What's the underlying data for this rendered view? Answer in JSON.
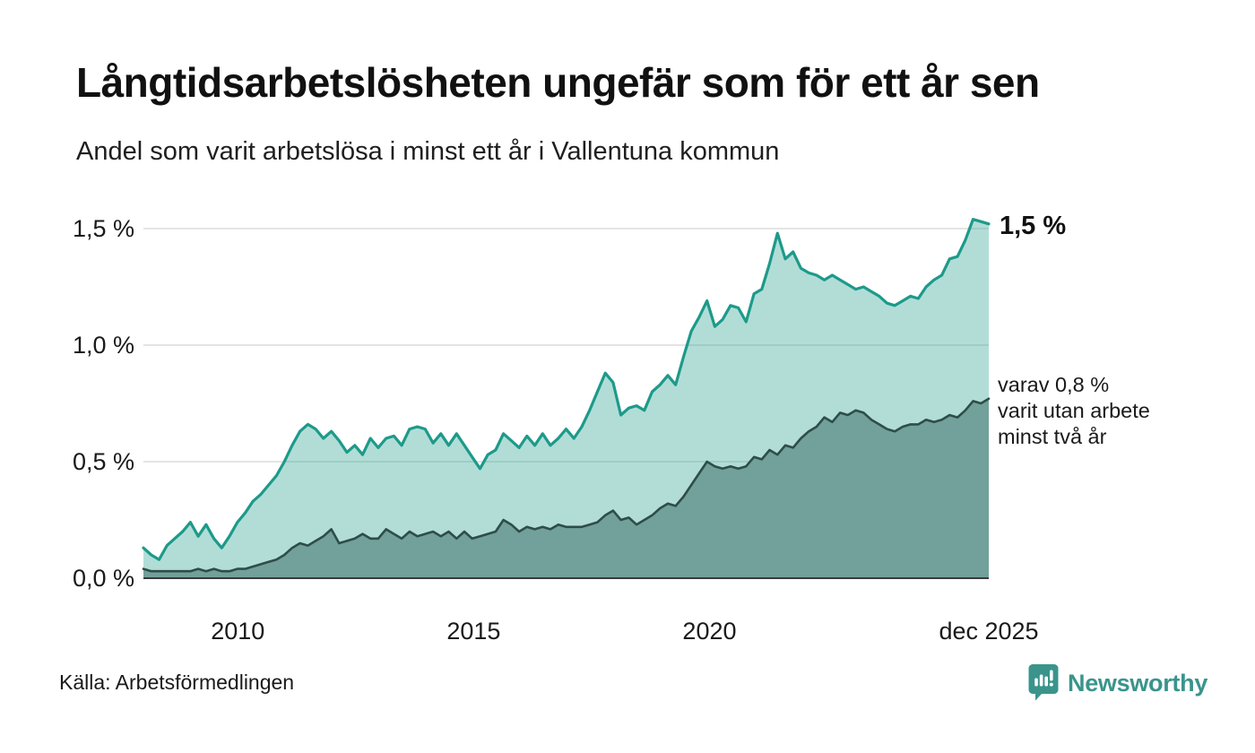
{
  "header": {
    "title": "Långtidsarbetslösheten ungefär som för ett år sen",
    "subtitle": "Andel som varit arbetslösa i minst ett år i Vallentuna kommun"
  },
  "chart_data": {
    "type": "area",
    "title": "Långtidsarbetslösheten ungefär som för ett år sen",
    "subtitle": "Andel som varit arbetslösa i minst ett år i Vallentuna kommun",
    "unit": "%",
    "x_range": [
      2008.0,
      2025.92
    ],
    "ylim": [
      0.0,
      1.6
    ],
    "grid": true,
    "y_ticks": [
      {
        "value": 0.0,
        "label": "0,0 %"
      },
      {
        "value": 0.5,
        "label": "0,5 %"
      },
      {
        "value": 1.0,
        "label": "1,0 %"
      },
      {
        "value": 1.5,
        "label": "1,5 %"
      }
    ],
    "x_ticks": [
      {
        "year": 2010,
        "label": "2010"
      },
      {
        "year": 2015,
        "label": "2015"
      },
      {
        "year": 2020,
        "label": "2020"
      },
      {
        "year": 2025.92,
        "label": "dec 2025"
      }
    ],
    "series": [
      {
        "name": "arbetslösa minst ett år",
        "line_color": "#1d9a8a",
        "fill_color": "rgba(29,154,138,0.34)",
        "line_width": 3.2,
        "last_value": 1.5,
        "values": [
          0.13,
          0.1,
          0.08,
          0.14,
          0.17,
          0.2,
          0.24,
          0.18,
          0.23,
          0.17,
          0.13,
          0.18,
          0.24,
          0.28,
          0.33,
          0.36,
          0.4,
          0.44,
          0.5,
          0.57,
          0.63,
          0.66,
          0.64,
          0.6,
          0.63,
          0.59,
          0.54,
          0.57,
          0.53,
          0.6,
          0.56,
          0.6,
          0.61,
          0.57,
          0.64,
          0.65,
          0.64,
          0.58,
          0.62,
          0.57,
          0.62,
          0.57,
          0.52,
          0.47,
          0.53,
          0.55,
          0.62,
          0.59,
          0.56,
          0.61,
          0.57,
          0.62,
          0.57,
          0.6,
          0.64,
          0.6,
          0.65,
          0.72,
          0.8,
          0.88,
          0.84,
          0.7,
          0.73,
          0.74,
          0.72,
          0.8,
          0.83,
          0.87,
          0.83,
          0.95,
          1.06,
          1.12,
          1.19,
          1.08,
          1.11,
          1.17,
          1.16,
          1.1,
          1.22,
          1.24,
          1.35,
          1.48,
          1.37,
          1.4,
          1.33,
          1.31,
          1.3,
          1.28,
          1.3,
          1.28,
          1.26,
          1.24,
          1.25,
          1.23,
          1.21,
          1.18,
          1.17,
          1.19,
          1.21,
          1.2,
          1.25,
          1.28,
          1.3,
          1.37,
          1.38,
          1.45,
          1.54,
          1.53,
          1.52
        ]
      },
      {
        "name": "varav utan arbete minst två år",
        "line_color": "#2e4d49",
        "fill_color": "#72a09a",
        "line_width": 2.6,
        "last_value": 0.8,
        "values": [
          0.04,
          0.03,
          0.03,
          0.03,
          0.03,
          0.03,
          0.03,
          0.04,
          0.03,
          0.04,
          0.03,
          0.03,
          0.04,
          0.04,
          0.05,
          0.06,
          0.07,
          0.08,
          0.1,
          0.13,
          0.15,
          0.14,
          0.16,
          0.18,
          0.21,
          0.15,
          0.16,
          0.17,
          0.19,
          0.17,
          0.17,
          0.21,
          0.19,
          0.17,
          0.2,
          0.18,
          0.19,
          0.2,
          0.18,
          0.2,
          0.17,
          0.2,
          0.17,
          0.18,
          0.19,
          0.2,
          0.25,
          0.23,
          0.2,
          0.22,
          0.21,
          0.22,
          0.21,
          0.23,
          0.22,
          0.22,
          0.22,
          0.23,
          0.24,
          0.27,
          0.29,
          0.25,
          0.26,
          0.23,
          0.25,
          0.27,
          0.3,
          0.32,
          0.31,
          0.35,
          0.4,
          0.45,
          0.5,
          0.48,
          0.47,
          0.48,
          0.47,
          0.48,
          0.52,
          0.51,
          0.55,
          0.53,
          0.57,
          0.56,
          0.6,
          0.63,
          0.65,
          0.69,
          0.67,
          0.71,
          0.7,
          0.72,
          0.71,
          0.68,
          0.66,
          0.64,
          0.63,
          0.65,
          0.66,
          0.66,
          0.68,
          0.67,
          0.68,
          0.7,
          0.69,
          0.72,
          0.76,
          0.75,
          0.77
        ]
      }
    ],
    "annotations": {
      "last_value_label": "1,5 %",
      "secondary_label_lines": [
        "varav 0,8 %",
        "varit utan arbete",
        "minst två år"
      ]
    },
    "legend_position": "right-annotations"
  },
  "footer": {
    "source": "Källa: Arbetsförmedlingen",
    "logo_text": "Newsworthy"
  },
  "colors": {
    "accent_teal": "#1d9a8a",
    "light_fill": "#b2ddd7",
    "dark_fill": "#72a09a",
    "dark_line": "#2e4d49",
    "gridline": "#dcdcdc",
    "axis_line": "#3a3a3a",
    "logo_teal": "#3a948c",
    "text": "#1a1a1a",
    "background": "#ffffff"
  }
}
